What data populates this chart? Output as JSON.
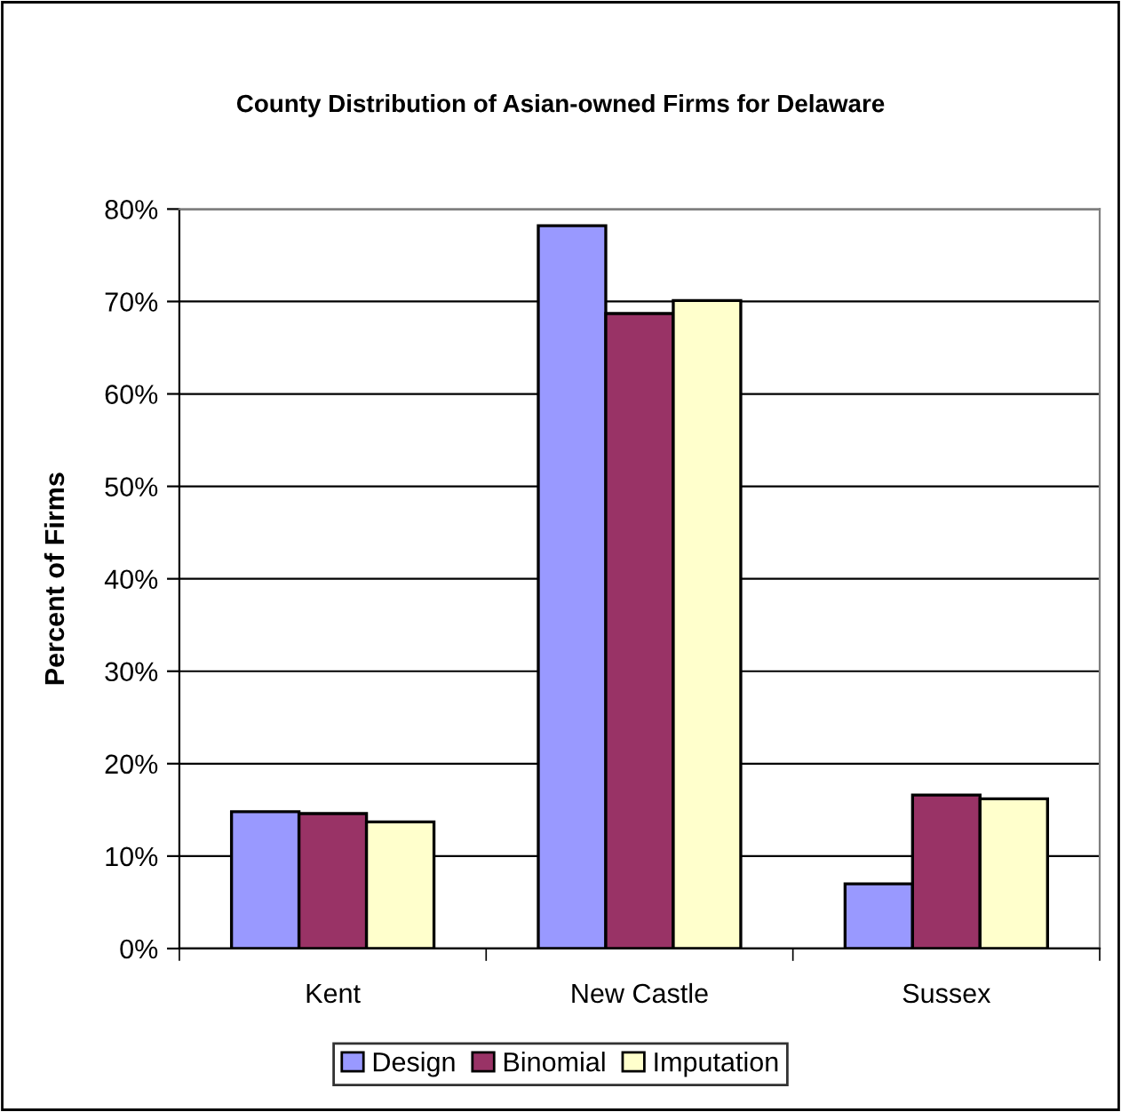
{
  "chart_data": {
    "type": "bar",
    "title": "County Distribution of Asian-owned Firms for Delaware",
    "ylabel": "Percent of Firms",
    "categories": [
      "Kent",
      "New Castle",
      "Sussex"
    ],
    "series": [
      {
        "name": "Design",
        "color": "#9999ff",
        "values": [
          14.8,
          78.2,
          7.0
        ]
      },
      {
        "name": "Binomial",
        "color": "#993366",
        "values": [
          14.6,
          68.7,
          16.6
        ]
      },
      {
        "name": "Imputation",
        "color": "#ffffcc",
        "values": [
          13.7,
          70.1,
          16.2
        ]
      }
    ],
    "ylim": [
      0,
      80
    ],
    "yticks": [
      {
        "value": 0,
        "label": "0%"
      },
      {
        "value": 10,
        "label": "10%"
      },
      {
        "value": 20,
        "label": "20%"
      },
      {
        "value": 30,
        "label": "30%"
      },
      {
        "value": 40,
        "label": "40%"
      },
      {
        "value": 50,
        "label": "50%"
      },
      {
        "value": 60,
        "label": "60%"
      },
      {
        "value": 70,
        "label": "70%"
      },
      {
        "value": 80,
        "label": "80%"
      }
    ],
    "grid": "y",
    "legend": "bottom"
  }
}
